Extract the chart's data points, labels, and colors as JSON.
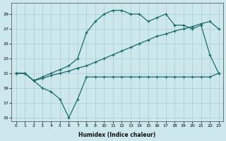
{
  "xlabel": "Humidex (Indice chaleur)",
  "ylabel": "",
  "background_color": "#cce8ec",
  "grid_color": "#aacccc",
  "line_color": "#1a6b6b",
  "xlim": [
    -0.5,
    23.5
  ],
  "ylim": [
    14.5,
    30.5
  ],
  "xticks": [
    0,
    1,
    2,
    3,
    4,
    5,
    6,
    7,
    8,
    9,
    10,
    11,
    12,
    13,
    14,
    15,
    16,
    17,
    18,
    19,
    20,
    21,
    22,
    23
  ],
  "yticks": [
    15,
    17,
    19,
    21,
    23,
    25,
    27,
    29
  ],
  "line1_x": [
    0,
    1,
    2,
    3,
    4,
    5,
    6,
    7,
    8,
    9,
    10,
    11,
    12,
    13,
    14,
    15,
    16,
    17,
    18,
    19,
    20,
    21,
    22,
    23
  ],
  "line1_y": [
    21.0,
    21.0,
    20.0,
    19.0,
    18.5,
    17.5,
    15.0,
    17.5,
    20.5,
    20.5,
    20.5,
    20.5,
    20.5,
    20.5,
    20.5,
    20.5,
    20.5,
    20.5,
    20.5,
    20.5,
    20.5,
    20.5,
    20.5,
    21.0
  ],
  "line2_x": [
    0,
    1,
    2,
    3,
    4,
    5,
    6,
    7,
    8,
    9,
    10,
    11,
    12,
    13,
    14,
    15,
    16,
    17,
    18,
    19,
    20,
    21,
    22,
    23
  ],
  "line2_y": [
    21.0,
    21.0,
    20.0,
    20.5,
    21.0,
    21.5,
    22.0,
    23.0,
    26.5,
    28.0,
    29.0,
    29.5,
    29.5,
    29.0,
    29.0,
    28.0,
    28.5,
    29.0,
    27.5,
    27.5,
    27.0,
    27.5,
    23.5,
    21.0
  ],
  "line3_x": [
    0,
    1,
    2,
    3,
    4,
    5,
    6,
    7,
    8,
    9,
    10,
    11,
    12,
    13,
    14,
    15,
    16,
    17,
    18,
    19,
    20,
    21,
    22,
    23
  ],
  "line3_y": [
    21.0,
    21.0,
    20.0,
    20.3,
    20.7,
    21.0,
    21.3,
    21.7,
    22.0,
    22.5,
    23.0,
    23.5,
    24.0,
    24.5,
    25.0,
    25.5,
    26.0,
    26.3,
    26.7,
    27.0,
    27.3,
    27.7,
    28.0,
    27.0
  ]
}
